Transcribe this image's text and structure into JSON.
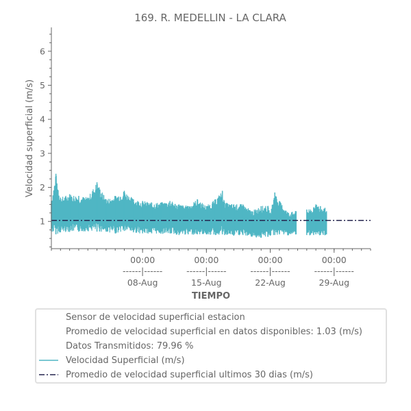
{
  "chart_data": {
    "type": "line",
    "title": "169. R. MEDELLIN - LA CLARA",
    "xlabel": "TIEMPO",
    "ylabel": "Velocidad superficial (m/s)",
    "ylim": [
      0.2,
      6.7
    ],
    "yticks": [
      "1",
      "2",
      "3",
      "4",
      "5",
      "6"
    ],
    "xlim": [
      "2024-07-29",
      "2024-09-02"
    ],
    "xticks": [
      {
        "date": "2024-08-08",
        "time": "00:00",
        "sep": "------|------",
        "day": "08-Aug"
      },
      {
        "date": "2024-08-15",
        "time": "00:00",
        "sep": "------|------",
        "day": "15-Aug"
      },
      {
        "date": "2024-08-22",
        "time": "00:00",
        "sep": "------|------",
        "day": "22-Aug"
      },
      {
        "date": "2024-08-29",
        "time": "00:00",
        "sep": "------|------",
        "day": "29-Aug"
      }
    ],
    "series": [
      {
        "name": "Velocidad Superficial (m/s)",
        "color": "#4fb6c4",
        "style": "solid",
        "band": [
          {
            "x": "2024-07-29",
            "low": 0.7,
            "high": 1.6
          },
          {
            "x": "2024-07-29T12:00",
            "low": 0.62,
            "high": 2.4
          },
          {
            "x": "2024-07-30",
            "low": 0.68,
            "high": 1.7
          },
          {
            "x": "2024-07-31",
            "low": 0.7,
            "high": 1.8
          },
          {
            "x": "2024-08-01",
            "low": 0.7,
            "high": 1.75
          },
          {
            "x": "2024-08-02",
            "low": 0.72,
            "high": 1.7
          },
          {
            "x": "2024-08-03",
            "low": 0.7,
            "high": 2.15
          },
          {
            "x": "2024-08-04",
            "low": 0.7,
            "high": 1.65
          },
          {
            "x": "2024-08-05",
            "low": 0.65,
            "high": 1.75
          },
          {
            "x": "2024-08-06",
            "low": 0.72,
            "high": 1.9
          },
          {
            "x": "2024-08-07",
            "low": 0.68,
            "high": 1.65
          },
          {
            "x": "2024-08-08",
            "low": 0.65,
            "high": 1.6
          },
          {
            "x": "2024-08-09",
            "low": 0.65,
            "high": 1.55
          },
          {
            "x": "2024-08-10",
            "low": 0.64,
            "high": 1.55
          },
          {
            "x": "2024-08-11",
            "low": 0.65,
            "high": 1.6
          },
          {
            "x": "2024-08-12",
            "low": 0.6,
            "high": 1.5
          },
          {
            "x": "2024-08-13",
            "low": 0.62,
            "high": 1.45
          },
          {
            "x": "2024-08-14",
            "low": 0.62,
            "high": 1.65
          },
          {
            "x": "2024-08-15",
            "low": 0.62,
            "high": 1.45
          },
          {
            "x": "2024-08-16",
            "low": 0.6,
            "high": 1.65
          },
          {
            "x": "2024-08-16T18:00",
            "low": 0.62,
            "high": 1.9
          },
          {
            "x": "2024-08-17",
            "low": 0.6,
            "high": 1.55
          },
          {
            "x": "2024-08-18",
            "low": 0.58,
            "high": 1.5
          },
          {
            "x": "2024-08-19",
            "low": 0.6,
            "high": 1.5
          },
          {
            "x": "2024-08-20",
            "low": 0.55,
            "high": 1.3
          },
          {
            "x": "2024-08-21",
            "low": 0.52,
            "high": 1.45
          },
          {
            "x": "2024-08-21T18:00",
            "low": 0.55,
            "high": 1.45
          },
          {
            "x": "2024-08-22",
            "low": 0.58,
            "high": 1.25
          },
          {
            "x": "2024-08-22T12:00",
            "low": 0.6,
            "high": 1.85
          },
          {
            "x": "2024-08-23",
            "low": 0.62,
            "high": 1.6
          },
          {
            "x": "2024-08-24",
            "low": 0.6,
            "high": 1.25
          },
          {
            "x": "2024-08-24T20:00",
            "low": 0.62,
            "high": 1.3
          }
        ],
        "band2": [
          {
            "x": "2024-08-26",
            "low": 0.6,
            "high": 1.35
          },
          {
            "x": "2024-08-26T18:00",
            "low": 0.6,
            "high": 1.4
          },
          {
            "x": "2024-08-27",
            "low": 0.62,
            "high": 1.5
          },
          {
            "x": "2024-08-27T12:00",
            "low": 0.6,
            "high": 1.45
          },
          {
            "x": "2024-08-28",
            "low": 0.6,
            "high": 1.4
          },
          {
            "x": "2024-08-28T04:00",
            "low": 0.62,
            "high": 1.3
          }
        ]
      },
      {
        "name": "Promedio de velocidad superficial ultimos 30 dias (m/s)",
        "color": "#24244e",
        "style": "dashdot",
        "value": 1.03
      }
    ],
    "legend": {
      "placement": "bottom",
      "entries": [
        {
          "label": "Sensor de velocidad superficial estacion",
          "marker": "none"
        },
        {
          "label": "Promedio de velocidad superficial en datos disponibles: 1.03 (m/s)",
          "marker": "none"
        },
        {
          "label": "Datos Transmitidos: 79.96 %",
          "marker": "none"
        },
        {
          "label": "Velocidad Superficial (m/s)",
          "marker": "solid"
        },
        {
          "label": "Promedio de velocidad superficial ultimos 30 dias (m/s)",
          "marker": "dashdot"
        }
      ]
    },
    "grid": false
  }
}
